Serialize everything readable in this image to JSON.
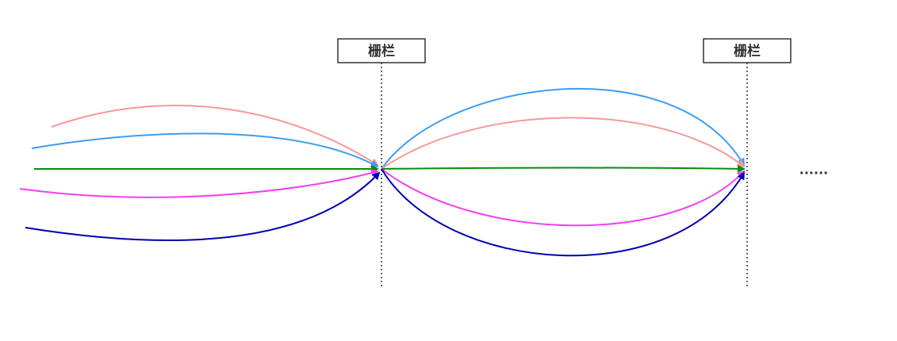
{
  "barriers": [
    {
      "label": "栅栏"
    },
    {
      "label": "栅栏"
    }
  ],
  "ellipsis": "......"
}
